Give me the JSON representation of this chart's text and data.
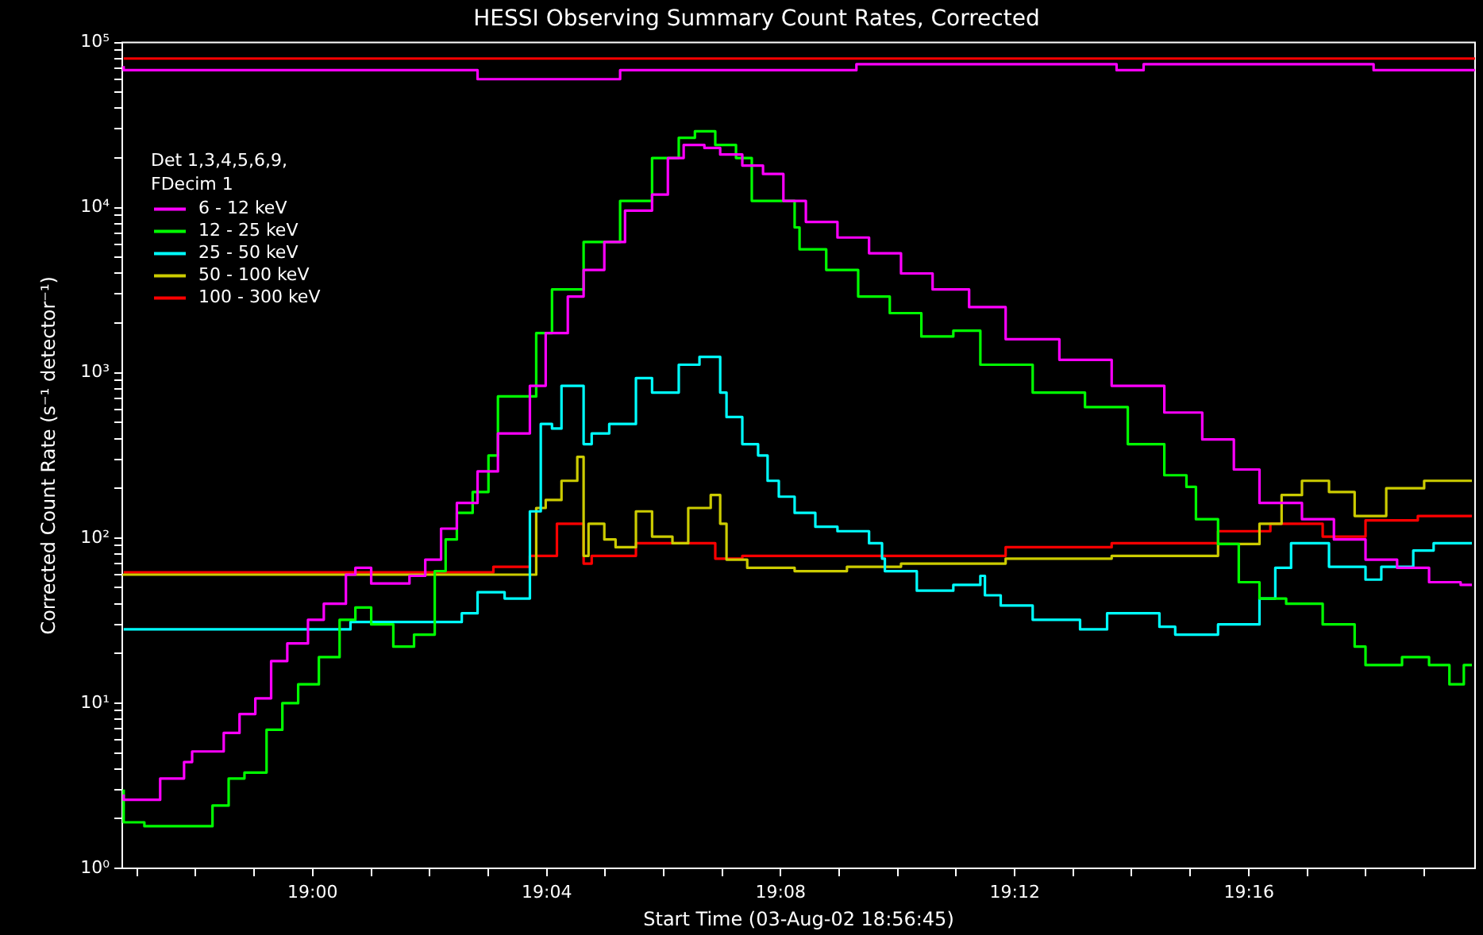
{
  "chart_data": {
    "type": "step",
    "title": "HESSI Observing Summary Count Rates, Corrected",
    "xlabel": "Start Time (03-Aug-02 18:56:45)",
    "ylabel": "Corrected Count Rate (s⁻¹ detector⁻¹)",
    "legend_title": "Det 1,3,4,5,6,9, FDecim 1",
    "legend": "top left",
    "log": true,
    "xlim": [
      18.9458,
      19.3311
    ],
    "ylim": [
      1,
      100000
    ],
    "xticks": [
      {
        "value": 18.95,
        "label": null
      },
      {
        "value": 18.9667,
        "label": null
      },
      {
        "value": 18.9833,
        "label": null
      },
      {
        "value": 19.0,
        "label": "19:00"
      },
      {
        "value": 19.0167,
        "label": null
      },
      {
        "value": 19.0333,
        "label": null
      },
      {
        "value": 19.05,
        "label": null
      },
      {
        "value": 19.0667,
        "label": "19:04"
      },
      {
        "value": 19.0833,
        "label": null
      },
      {
        "value": 19.1,
        "label": null
      },
      {
        "value": 19.1167,
        "label": null
      },
      {
        "value": 19.1333,
        "label": "19:08"
      },
      {
        "value": 19.15,
        "label": null
      },
      {
        "value": 19.1667,
        "label": null
      },
      {
        "value": 19.1833,
        "label": null
      },
      {
        "value": 19.2,
        "label": "19:12"
      },
      {
        "value": 19.2167,
        "label": null
      },
      {
        "value": 19.2333,
        "label": null
      },
      {
        "value": 19.25,
        "label": null
      },
      {
        "value": 19.2667,
        "label": "19:16"
      },
      {
        "value": 19.2833,
        "label": null
      },
      {
        "value": 19.3,
        "label": null
      },
      {
        "value": 19.3167,
        "label": null
      }
    ],
    "yticks": [
      {
        "value": 1,
        "label": "10⁰"
      },
      {
        "value": 2,
        "label": null
      },
      {
        "value": 3,
        "label": null
      },
      {
        "value": 4,
        "label": null
      },
      {
        "value": 5,
        "label": null
      },
      {
        "value": 6,
        "label": null
      },
      {
        "value": 7,
        "label": null
      },
      {
        "value": 8,
        "label": null
      },
      {
        "value": 9,
        "label": null
      },
      {
        "value": 10,
        "label": "10¹"
      },
      {
        "value": 20,
        "label": null
      },
      {
        "value": 30,
        "label": null
      },
      {
        "value": 40,
        "label": null
      },
      {
        "value": 50,
        "label": null
      },
      {
        "value": 60,
        "label": null
      },
      {
        "value": 70,
        "label": null
      },
      {
        "value": 80,
        "label": null
      },
      {
        "value": 90,
        "label": null
      },
      {
        "value": 100,
        "label": "10²"
      },
      {
        "value": 200,
        "label": null
      },
      {
        "value": 300,
        "label": null
      },
      {
        "value": 400,
        "label": null
      },
      {
        "value": 500,
        "label": null
      },
      {
        "value": 600,
        "label": null
      },
      {
        "value": 700,
        "label": null
      },
      {
        "value": 800,
        "label": null
      },
      {
        "value": 900,
        "label": null
      },
      {
        "value": 1000,
        "label": "10³"
      },
      {
        "value": 2000,
        "label": null
      },
      {
        "value": 3000,
        "label": null
      },
      {
        "value": 4000,
        "label": null
      },
      {
        "value": 5000,
        "label": null
      },
      {
        "value": 6000,
        "label": null
      },
      {
        "value": 7000,
        "label": null
      },
      {
        "value": 8000,
        "label": null
      },
      {
        "value": 9000,
        "label": null
      },
      {
        "value": 10000,
        "label": "10⁴"
      },
      {
        "value": 20000,
        "label": null
      },
      {
        "value": 30000,
        "label": null
      },
      {
        "value": 40000,
        "label": null
      },
      {
        "value": 50000,
        "label": null
      },
      {
        "value": 60000,
        "label": null
      },
      {
        "value": 70000,
        "label": null
      },
      {
        "value": 80000,
        "label": null
      },
      {
        "value": 90000,
        "label": null
      },
      {
        "value": 100000,
        "label": "10⁵"
      }
    ],
    "series": [
      {
        "name": "6 - 12 keV",
        "color": "#ff00ff",
        "x": [
          18.9462,
          18.9566,
          18.9634,
          18.9657,
          18.9747,
          18.9792,
          18.9837,
          18.9882,
          18.9928,
          18.9987,
          19.0032,
          19.0095,
          19.0122,
          19.0167,
          19.0276,
          19.0321,
          19.0366,
          19.0411,
          19.047,
          19.0528,
          19.0619,
          19.0664,
          19.0727,
          19.0772,
          19.0831,
          19.089,
          19.0967,
          19.1012,
          19.1057,
          19.1116,
          19.1161,
          19.1224,
          19.1283,
          19.1341,
          19.1405,
          19.1495,
          19.1585,
          19.1676,
          19.1766,
          19.187,
          19.1974,
          19.2127,
          19.2276,
          19.2426,
          19.2534,
          19.2624,
          19.2697,
          19.2818,
          19.2909,
          19.2999,
          19.3089,
          19.318,
          19.327,
          19.3302
        ],
        "values": [
          2.8,
          2.6,
          3.5,
          4.4,
          5.1,
          6.6,
          8.6,
          10.7,
          18,
          23,
          32,
          40,
          60,
          66,
          53,
          59,
          74,
          114,
          163,
          253,
          430,
          835,
          1740,
          2900,
          4200,
          6200,
          9600,
          12000,
          20000,
          24000,
          23000,
          21000,
          18000,
          16000,
          11000,
          8200,
          6600,
          5300,
          4000,
          3200,
          2500,
          1600,
          1200,
          835,
          575,
          395,
          260,
          163,
          130,
          98,
          74,
          66,
          54,
          52
        ]
      },
      {
        "name": "12 - 25 keV",
        "color": "#00ff00",
        "x": [
          18.9462,
          18.9521,
          18.9612,
          18.9715,
          18.9761,
          18.9806,
          18.9869,
          18.9914,
          18.9959,
          19.0018,
          19.0077,
          19.0122,
          19.0167,
          19.023,
          19.0289,
          19.0348,
          19.0379,
          19.0411,
          19.0456,
          19.0501,
          19.0528,
          19.0637,
          19.0682,
          19.0772,
          19.0876,
          19.0967,
          19.1043,
          19.1089,
          19.1147,
          19.1206,
          19.1251,
          19.1296,
          19.1373,
          19.1387,
          19.1463,
          19.1554,
          19.1644,
          19.1734,
          19.1825,
          19.1902,
          19.2051,
          19.22,
          19.2322,
          19.2426,
          19.2489,
          19.2516,
          19.2579,
          19.2638,
          19.2697,
          19.2773,
          19.2877,
          19.2968,
          19.2999,
          19.3103,
          19.318,
          19.3238,
          19.3279,
          19.3302
        ],
        "values": [
          3.0,
          1.9,
          1.8,
          1.8,
          2.4,
          3.5,
          3.8,
          6.9,
          10,
          13,
          19,
          32,
          38,
          30,
          22,
          26,
          63,
          98,
          142,
          190,
          316,
          720,
          1740,
          3200,
          6200,
          11000,
          20000,
          26500,
          29000,
          24000,
          20000,
          11000,
          11000,
          7600,
          5600,
          4200,
          2900,
          2300,
          1660,
          1800,
          1120,
          760,
          620,
          370,
          240,
          204,
          130,
          92,
          54,
          43,
          40,
          30,
          22,
          17,
          19,
          17,
          13,
          17
        ]
      },
      {
        "name": "25 - 50 keV",
        "color": "#00ffff",
        "x": [
          18.9462,
          19.0108,
          19.0122,
          19.0425,
          19.047,
          19.0547,
          19.056,
          19.0619,
          19.065,
          19.0682,
          19.0709,
          19.0772,
          19.0795,
          19.0845,
          19.0921,
          19.0967,
          19.1043,
          19.1102,
          19.1161,
          19.1179,
          19.1224,
          19.1269,
          19.1296,
          19.1328,
          19.1373,
          19.1432,
          19.1495,
          19.1585,
          19.1622,
          19.163,
          19.1721,
          19.1825,
          19.1902,
          19.1915,
          19.196,
          19.2051,
          19.2186,
          19.2263,
          19.2412,
          19.2457,
          19.2579,
          19.2697,
          19.2742,
          19.2787,
          19.2895,
          19.2999,
          19.3044,
          19.3135,
          19.3193,
          19.3302
        ],
        "values": [
          28,
          28,
          31,
          31,
          35,
          47,
          43,
          43,
          145,
          490,
          460,
          835,
          370,
          430,
          490,
          930,
          760,
          1120,
          1250,
          760,
          540,
          370,
          316,
          222,
          178,
          142,
          117,
          110,
          93,
          75,
          63,
          48,
          52,
          59,
          45,
          39,
          32,
          28,
          35,
          29,
          26,
          30,
          43,
          66,
          93,
          67,
          56,
          67,
          84,
          93
        ]
      },
      {
        "name": "50 - 100 keV",
        "color": "#cccc00",
        "x": [
          18.9462,
          19.0637,
          19.0664,
          19.0709,
          19.0754,
          19.0772,
          19.0786,
          19.0831,
          19.0863,
          19.0921,
          19.0967,
          19.1025,
          19.107,
          19.1134,
          19.1161,
          19.1179,
          19.1238,
          19.1373,
          19.1522,
          19.1676,
          19.1825,
          19.1974,
          19.2276,
          19.2579,
          19.2697,
          19.276,
          19.2818,
          19.2895,
          19.2968,
          19.3058,
          19.3166,
          19.3302
        ],
        "values": [
          59,
          60,
          152,
          170,
          222,
          310,
          78,
          122,
          98,
          88,
          145,
          102,
          93,
          152,
          182,
          122,
          74,
          66,
          63,
          67,
          70,
          70,
          75,
          78,
          92,
          122,
          182,
          222,
          190,
          136,
          200,
          222
        ]
      },
      {
        "name": "100 - 300 keV",
        "color": "#ff0000",
        "x": [
          18.9462,
          19.0515,
          19.0619,
          19.0696,
          19.0772,
          19.0795,
          19.0921,
          19.1147,
          19.1224,
          19.1825,
          19.1974,
          19.2276,
          19.2579,
          19.2728,
          19.2877,
          19.2999,
          19.3148,
          19.3302
        ],
        "values": [
          62,
          62,
          67,
          78,
          122,
          70,
          78,
          93,
          75,
          78,
          78,
          88,
          93,
          110,
          122,
          102,
          128,
          136
        ]
      },
      {
        "color": "#ff0000",
        "x": [
          18.9462,
          19.3311
        ],
        "values": [
          80000,
          80000
        ]
      },
      {
        "color": "#ff00ff",
        "x": [
          18.9462,
          19.047,
          19.0876,
          19.1549,
          19.229,
          19.2367,
          19.3022,
          19.3103,
          19.3311
        ],
        "values": [
          72000,
          68000,
          60000,
          68000,
          74000,
          68000,
          74000,
          68000,
          68000
        ]
      }
    ]
  }
}
